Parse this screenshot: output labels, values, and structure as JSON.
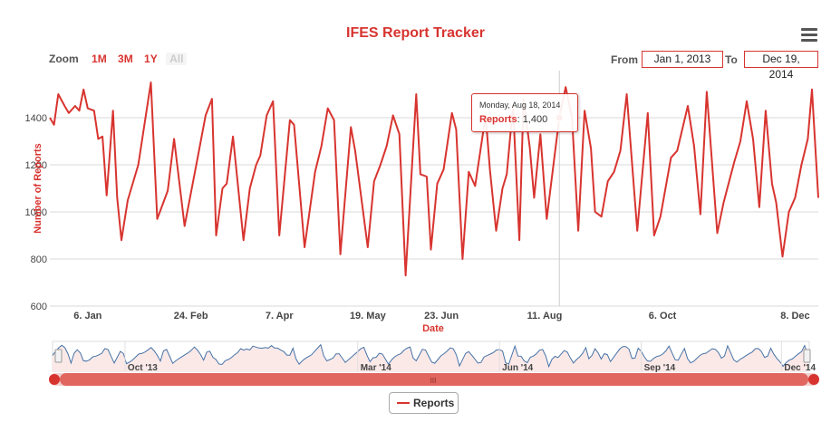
{
  "header": {
    "title": "IFES Report Tracker",
    "menu_icon": "hamburger-menu-icon"
  },
  "zoom": {
    "label": "Zoom",
    "buttons": [
      "1M",
      "3M",
      "1Y",
      "All"
    ],
    "selected": "All"
  },
  "range": {
    "from_label": "From",
    "from_value": "Jan 1, 2013",
    "to_label": "To",
    "to_value": "Dec 19, 2014"
  },
  "tooltip": {
    "date": "Monday, Aug 18, 2014",
    "series": "Reports",
    "value": "1,400"
  },
  "colors": {
    "accent": "#d8342f",
    "navigator_line": "#4572a7",
    "navigator_fill": "#fbe9e8",
    "scrollbar": "#e0665f"
  },
  "chart_data": {
    "type": "line",
    "xlabel": "Date",
    "ylabel": "Number of Reports",
    "ylim": [
      600,
      1600
    ],
    "y_ticks": [
      600,
      800,
      1000,
      1200,
      1400
    ],
    "x_ticks": [
      {
        "date": "2014-01-06",
        "label": "6. Jan"
      },
      {
        "date": "2014-02-24",
        "label": "24. Feb"
      },
      {
        "date": "2014-04-07",
        "label": "7. Apr"
      },
      {
        "date": "2014-05-19",
        "label": "19. May"
      },
      {
        "date": "2014-06-23",
        "label": "23. Jun"
      },
      {
        "date": "2014-08-11",
        "label": "11. Aug"
      },
      {
        "date": "2014-10-06",
        "label": "6. Oct"
      },
      {
        "date": "2014-12-08",
        "label": "8. Dec"
      }
    ],
    "x_range": [
      "2013-12-19",
      "2014-12-19"
    ],
    "grid": true,
    "legend_position": "bottom-center",
    "series": [
      {
        "name": "Reports",
        "color": "#d8342f",
        "points": [
          [
            "2013-12-19",
            1400
          ],
          [
            "2013-12-21",
            1370
          ],
          [
            "2013-12-23",
            1500
          ],
          [
            "2013-12-26",
            1450
          ],
          [
            "2013-12-28",
            1420
          ],
          [
            "2013-12-31",
            1450
          ],
          [
            "2014-01-02",
            1430
          ],
          [
            "2014-01-04",
            1520
          ],
          [
            "2014-01-06",
            1440
          ],
          [
            "2014-01-09",
            1430
          ],
          [
            "2014-01-11",
            1310
          ],
          [
            "2014-01-13",
            1320
          ],
          [
            "2014-01-15",
            1070
          ],
          [
            "2014-01-18",
            1430
          ],
          [
            "2014-01-20",
            1060
          ],
          [
            "2014-01-22",
            880
          ],
          [
            "2014-01-25",
            1050
          ],
          [
            "2014-01-30",
            1200
          ],
          [
            "2014-02-05",
            1550
          ],
          [
            "2014-02-08",
            970
          ],
          [
            "2014-02-13",
            1090
          ],
          [
            "2014-02-16",
            1310
          ],
          [
            "2014-02-21",
            940
          ],
          [
            "2014-02-27",
            1220
          ],
          [
            "2014-03-03",
            1410
          ],
          [
            "2014-03-06",
            1480
          ],
          [
            "2014-03-08",
            900
          ],
          [
            "2014-03-11",
            1100
          ],
          [
            "2014-03-13",
            1120
          ],
          [
            "2014-03-16",
            1320
          ],
          [
            "2014-03-21",
            880
          ],
          [
            "2014-03-24",
            1100
          ],
          [
            "2014-03-27",
            1200
          ],
          [
            "2014-03-29",
            1240
          ],
          [
            "2014-04-01",
            1410
          ],
          [
            "2014-04-04",
            1470
          ],
          [
            "2014-04-07",
            900
          ],
          [
            "2014-04-12",
            1390
          ],
          [
            "2014-04-14",
            1370
          ],
          [
            "2014-04-19",
            850
          ],
          [
            "2014-04-24",
            1170
          ],
          [
            "2014-04-27",
            1280
          ],
          [
            "2014-04-30",
            1440
          ],
          [
            "2014-05-03",
            1390
          ],
          [
            "2014-05-06",
            820
          ],
          [
            "2014-05-11",
            1360
          ],
          [
            "2014-05-13",
            1260
          ],
          [
            "2014-05-19",
            850
          ],
          [
            "2014-05-22",
            1130
          ],
          [
            "2014-05-25",
            1200
          ],
          [
            "2014-05-28",
            1280
          ],
          [
            "2014-05-31",
            1410
          ],
          [
            "2014-06-03",
            1330
          ],
          [
            "2014-06-06",
            730
          ],
          [
            "2014-06-11",
            1500
          ],
          [
            "2014-06-13",
            1160
          ],
          [
            "2014-06-16",
            1150
          ],
          [
            "2014-06-18",
            840
          ],
          [
            "2014-06-21",
            1120
          ],
          [
            "2014-06-24",
            1180
          ],
          [
            "2014-06-28",
            1420
          ],
          [
            "2014-06-30",
            1350
          ],
          [
            "2014-07-03",
            800
          ],
          [
            "2014-07-06",
            1170
          ],
          [
            "2014-07-09",
            1110
          ],
          [
            "2014-07-14",
            1410
          ],
          [
            "2014-07-16",
            1180
          ],
          [
            "2014-07-19",
            920
          ],
          [
            "2014-07-22",
            1100
          ],
          [
            "2014-07-24",
            1160
          ],
          [
            "2014-07-27",
            1450
          ],
          [
            "2014-07-30",
            880
          ],
          [
            "2014-08-01",
            1480
          ],
          [
            "2014-08-04",
            1270
          ],
          [
            "2014-08-06",
            1060
          ],
          [
            "2014-08-09",
            1330
          ],
          [
            "2014-08-12",
            970
          ],
          [
            "2014-08-18",
            1400
          ],
          [
            "2014-08-21",
            1530
          ],
          [
            "2014-08-24",
            1400
          ],
          [
            "2014-08-27",
            920
          ],
          [
            "2014-08-30",
            1430
          ],
          [
            "2014-09-02",
            1270
          ],
          [
            "2014-09-04",
            1000
          ],
          [
            "2014-09-07",
            980
          ],
          [
            "2014-09-10",
            1130
          ],
          [
            "2014-09-13",
            1170
          ],
          [
            "2014-09-16",
            1260
          ],
          [
            "2014-09-19",
            1500
          ],
          [
            "2014-09-24",
            920
          ],
          [
            "2014-09-29",
            1420
          ],
          [
            "2014-10-02",
            900
          ],
          [
            "2014-10-05",
            980
          ],
          [
            "2014-10-10",
            1230
          ],
          [
            "2014-10-13",
            1260
          ],
          [
            "2014-10-18",
            1450
          ],
          [
            "2014-10-21",
            1280
          ],
          [
            "2014-10-24",
            990
          ],
          [
            "2014-10-27",
            1510
          ],
          [
            "2014-11-01",
            910
          ],
          [
            "2014-11-04",
            1040
          ],
          [
            "2014-11-09",
            1210
          ],
          [
            "2014-11-12",
            1300
          ],
          [
            "2014-11-15",
            1470
          ],
          [
            "2014-11-18",
            1310
          ],
          [
            "2014-11-21",
            1020
          ],
          [
            "2014-11-24",
            1430
          ],
          [
            "2014-11-27",
            1120
          ],
          [
            "2014-11-29",
            1040
          ],
          [
            "2014-12-02",
            810
          ],
          [
            "2014-12-05",
            1000
          ],
          [
            "2014-12-08",
            1060
          ],
          [
            "2014-12-11",
            1200
          ],
          [
            "2014-12-14",
            1310
          ],
          [
            "2014-12-16",
            1520
          ],
          [
            "2014-12-18",
            1210
          ],
          [
            "2014-12-19",
            1060
          ]
        ]
      }
    ],
    "highlight": {
      "date": "2014-08-18",
      "value": 1400
    },
    "navigator": {
      "x_range": [
        "2013-08-15",
        "2014-12-19"
      ],
      "labels": [
        {
          "date": "2013-10-01",
          "label": "Oct '13"
        },
        {
          "date": "2014-03-01",
          "label": "Mar '14"
        },
        {
          "date": "2014-06-01",
          "label": "Jun '14"
        },
        {
          "date": "2014-09-01",
          "label": "Sep '14"
        },
        {
          "date": "2014-12-01",
          "label": "Dec '14"
        }
      ],
      "scrollbar_grip": "III"
    }
  },
  "legend": {
    "label": "Reports"
  }
}
